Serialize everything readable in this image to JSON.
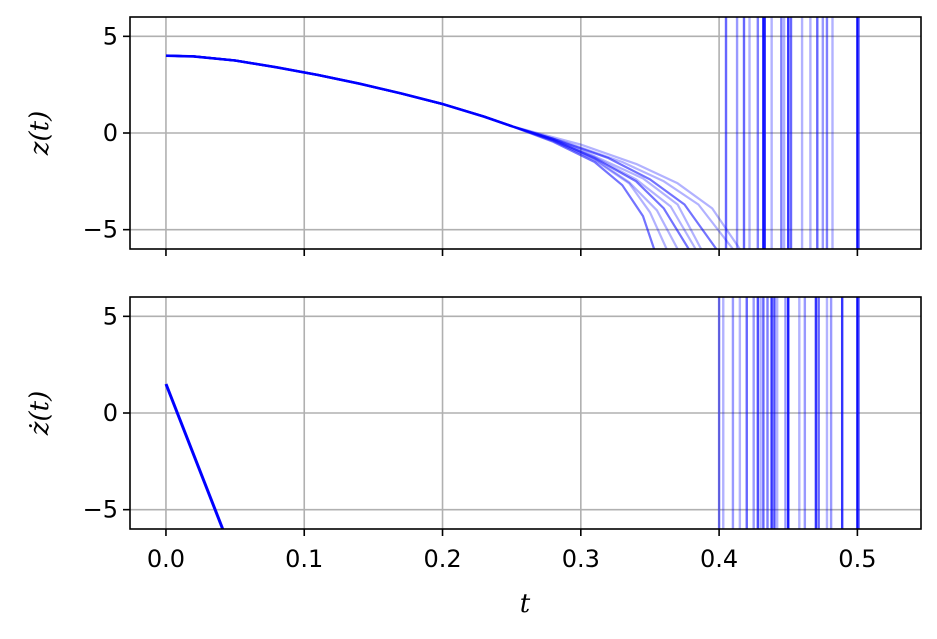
{
  "chart_data": [
    {
      "type": "line",
      "panel": "top",
      "ylabel": "z(t)",
      "xlim": [
        -0.026,
        0.546
      ],
      "ylim": [
        -6,
        6
      ],
      "x_ticks": [
        0.0,
        0.1,
        0.2,
        0.3,
        0.4,
        0.5
      ],
      "y_ticks": [
        5,
        0,
        -5
      ],
      "y_tick_labels": [
        "5",
        "0",
        "−5"
      ],
      "grid": true,
      "line_color": "#0000ff",
      "shared_prefix": {
        "x": [
          0.0,
          0.02,
          0.05,
          0.08,
          0.11,
          0.14,
          0.17,
          0.2,
          0.23,
          0.25
        ],
        "y": [
          4.0,
          3.96,
          3.75,
          3.4,
          3.0,
          2.55,
          2.05,
          1.5,
          0.85,
          0.35
        ]
      },
      "divergent_tails": [
        {
          "x": [
            0.25,
            0.28,
            0.31,
            0.33,
            0.345,
            0.353
          ],
          "y": [
            0.35,
            -0.45,
            -1.5,
            -2.7,
            -4.3,
            -6.0
          ]
        },
        {
          "x": [
            0.25,
            0.28,
            0.31,
            0.335,
            0.35,
            0.362
          ],
          "y": [
            0.35,
            -0.4,
            -1.4,
            -2.6,
            -4.1,
            -6.0
          ]
        },
        {
          "x": [
            0.25,
            0.28,
            0.31,
            0.335,
            0.355,
            0.37
          ],
          "y": [
            0.35,
            -0.4,
            -1.35,
            -2.55,
            -4.0,
            -6.0
          ]
        },
        {
          "x": [
            0.25,
            0.28,
            0.31,
            0.34,
            0.36,
            0.378
          ],
          "y": [
            0.35,
            -0.35,
            -1.3,
            -2.5,
            -3.9,
            -6.0
          ]
        },
        {
          "x": [
            0.25,
            0.28,
            0.31,
            0.34,
            0.365,
            0.383
          ],
          "y": [
            0.35,
            -0.35,
            -1.25,
            -2.4,
            -3.8,
            -6.0
          ]
        },
        {
          "x": [
            0.25,
            0.28,
            0.31,
            0.345,
            0.37,
            0.387
          ],
          "y": [
            0.35,
            -0.3,
            -1.2,
            -2.35,
            -3.7,
            -6.0
          ]
        },
        {
          "x": [
            0.25,
            0.28,
            0.32,
            0.35,
            0.375,
            0.398
          ],
          "y": [
            0.35,
            -0.3,
            -1.3,
            -2.4,
            -3.7,
            -6.0
          ]
        },
        {
          "x": [
            0.25,
            0.29,
            0.33,
            0.36,
            0.385,
            0.41
          ],
          "y": [
            0.35,
            -0.5,
            -1.5,
            -2.5,
            -3.7,
            -6.0
          ]
        },
        {
          "x": [
            0.25,
            0.3,
            0.34,
            0.37,
            0.395,
            0.415
          ],
          "y": [
            0.35,
            -0.6,
            -1.6,
            -2.6,
            -3.9,
            -6.0
          ]
        }
      ],
      "vertical_lines": {
        "x": [
          0.405,
          0.413,
          0.418,
          0.422,
          0.428,
          0.432,
          0.433,
          0.438,
          0.445,
          0.447,
          0.45,
          0.452,
          0.46,
          0.466,
          0.471,
          0.475,
          0.478,
          0.482,
          0.5,
          0.501
        ],
        "opacity": [
          0.6,
          0.4,
          0.6,
          0.3,
          0.5,
          0.9,
          0.8,
          0.3,
          0.5,
          0.3,
          0.8,
          0.6,
          0.3,
          0.3,
          0.6,
          0.4,
          0.5,
          0.3,
          0.9,
          0.5
        ]
      }
    },
    {
      "type": "line",
      "panel": "bottom",
      "xlabel": "t",
      "ylabel": "ż(t)",
      "xlim": [
        -0.026,
        0.546
      ],
      "ylim": [
        -6,
        6
      ],
      "x_ticks": [
        0.0,
        0.1,
        0.2,
        0.3,
        0.4,
        0.5
      ],
      "x_tick_labels": [
        "0.0",
        "0.1",
        "0.2",
        "0.3",
        "0.4",
        "0.5"
      ],
      "y_ticks": [
        5,
        0,
        -5
      ],
      "y_tick_labels": [
        "5",
        "0",
        "−5"
      ],
      "grid": true,
      "line_color": "#0000ff",
      "main_segment": {
        "x": [
          0.0,
          0.041
        ],
        "y": [
          1.5,
          -6.0
        ]
      },
      "vertical_lines": {
        "x": [
          0.4,
          0.403,
          0.41,
          0.415,
          0.42,
          0.425,
          0.428,
          0.43,
          0.432,
          0.435,
          0.438,
          0.44,
          0.442,
          0.448,
          0.45,
          0.458,
          0.462,
          0.47,
          0.472,
          0.478,
          0.481,
          0.489,
          0.5,
          0.501
        ],
        "opacity": [
          0.5,
          0.3,
          0.4,
          0.3,
          0.6,
          0.4,
          0.7,
          0.3,
          0.6,
          0.5,
          0.8,
          0.7,
          0.3,
          0.4,
          0.9,
          0.3,
          0.4,
          0.8,
          0.6,
          0.3,
          0.4,
          0.8,
          0.9,
          0.5
        ]
      }
    }
  ]
}
